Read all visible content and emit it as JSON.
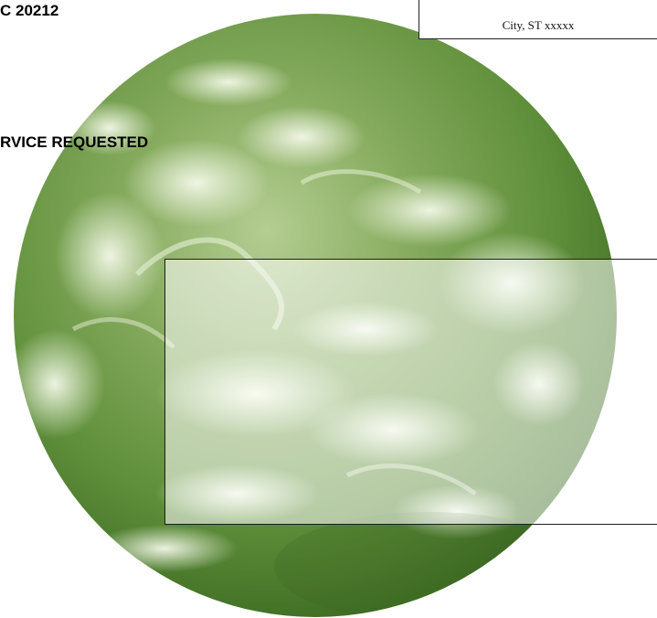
{
  "sender": {
    "address_fragment": "C 20212",
    "service_notice": "RVICE REQUESTED"
  },
  "recipient": {
    "city_line": "City, ST xxxxx"
  },
  "background": {
    "image": "earth-globe-green-tint",
    "tint_color": "#5f8f3a"
  }
}
